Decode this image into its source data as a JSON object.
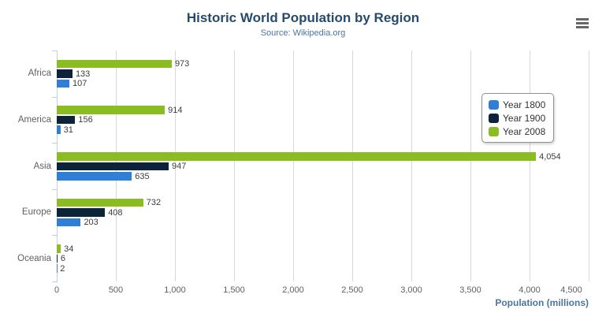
{
  "header": {
    "title": "Historic World Population by Region",
    "subtitle": "Source: Wikipedia.org"
  },
  "context_menu": {
    "icon": "hamburger-icon",
    "color": "#666666"
  },
  "axis": {
    "x_title": "Population (millions)",
    "x_tick_labels": [
      "0",
      "500",
      "1,000",
      "1,500",
      "2,000",
      "2,500",
      "3,000",
      "3,500",
      "4,000",
      "4,500"
    ]
  },
  "legend": {
    "position": "right",
    "items": [
      {
        "label": "Year 1800",
        "color": "#2f7ed8"
      },
      {
        "label": "Year 1900",
        "color": "#0d233a"
      },
      {
        "label": "Year 2008",
        "color": "#8bbc21"
      }
    ]
  },
  "colors": {
    "title": "#274b6d",
    "subtitle": "#4d759e",
    "grid": "#d8d8d8",
    "axis_line": "#c0d0e0",
    "tick_label": "#606060",
    "data_label": "#3c3c3c"
  },
  "chart_data": {
    "type": "bar",
    "orientation": "horizontal",
    "title": "Historic World Population by Region",
    "subtitle": "Source: Wikipedia.org",
    "categories": [
      "Africa",
      "America",
      "Asia",
      "Europe",
      "Oceania"
    ],
    "series": [
      {
        "name": "Year 1800",
        "color": "#2f7ed8",
        "values": [
          107,
          31,
          635,
          203,
          2
        ]
      },
      {
        "name": "Year 1900",
        "color": "#0d233a",
        "values": [
          133,
          156,
          947,
          408,
          6
        ]
      },
      {
        "name": "Year 2008",
        "color": "#8bbc21",
        "values": [
          973,
          914,
          4054,
          732,
          34
        ]
      }
    ],
    "bar_order_top_to_bottom": [
      "Year 2008",
      "Year 1900",
      "Year 1800"
    ],
    "data_labels": {
      "Year 1800": [
        "107",
        "31",
        "635",
        "203",
        "2"
      ],
      "Year 1900": [
        "133",
        "156",
        "947",
        "408",
        "6"
      ],
      "Year 2008": [
        "973",
        "914",
        "4,054",
        "732",
        "34"
      ]
    },
    "xlabel": "Population (millions)",
    "ylabel": "",
    "xlim": [
      0,
      4500
    ],
    "x_ticks": [
      0,
      500,
      1000,
      1500,
      2000,
      2500,
      3000,
      3500,
      4000,
      4500
    ],
    "grid": true,
    "legend_position": "right"
  }
}
